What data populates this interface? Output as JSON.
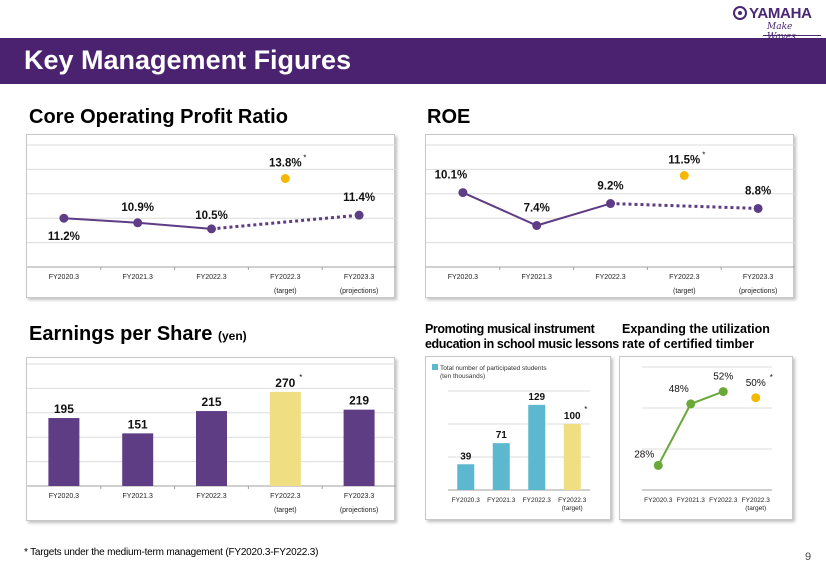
{
  "header": {
    "logo_text": "YAMAHA",
    "logo_tagline": "Make Waves",
    "title": "Key Management Figures"
  },
  "sections": {
    "cop_title": "Core Operating Profit Ratio",
    "roe_title": "ROE",
    "eps_title": "Earnings per Share",
    "eps_unit": "(yen)",
    "edu_title_line1": "Promoting musical instrument",
    "edu_title_line2": "education in school music lessons",
    "timber_title_line1": "Expanding the utilization",
    "timber_title_line2": "rate of certified timber"
  },
  "footnote": "* Targets under the medium-term management (FY2020.3-FY2022.3)",
  "page_number": "9",
  "colors": {
    "brand_purple": "#4a2270",
    "series_purple": "#5f3d85",
    "target_yellow_dot": "#f5b800",
    "target_yellow_bar": "#f0de82",
    "edu_blue": "#5bb8cf",
    "timber_green": "#6aa839"
  },
  "chart_data": [
    {
      "id": "core-operating-profit-ratio",
      "type": "line",
      "title": "Core Operating Profit Ratio",
      "categories": [
        "FY2020.3",
        "FY2021.3",
        "FY2022.3",
        "FY2022.3",
        "FY2023.3"
      ],
      "category_sublabels": [
        "",
        "",
        "",
        "(target)",
        "(projections)"
      ],
      "series": [
        {
          "name": "actual",
          "x_index": [
            0,
            1,
            2
          ],
          "values": [
            11.2,
            10.9,
            10.5
          ],
          "labels": [
            "11.2%",
            "10.9%",
            "10.5%"
          ],
          "style": "solid"
        },
        {
          "name": "projection",
          "x_index": [
            2,
            4
          ],
          "values": [
            10.5,
            11.4
          ],
          "labels": [
            "",
            "11.4%"
          ],
          "style": "dotted"
        },
        {
          "name": "target",
          "x_index": [
            3
          ],
          "values": [
            13.8
          ],
          "labels": [
            "13.8%"
          ],
          "style": "dot",
          "marker_note": "*"
        }
      ],
      "ylim": [
        8,
        16
      ],
      "grid": true,
      "xlabel": "",
      "ylabel": ""
    },
    {
      "id": "roe",
      "type": "line",
      "title": "ROE",
      "categories": [
        "FY2020.3",
        "FY2021.3",
        "FY2022.3",
        "FY2022.3",
        "FY2023.3"
      ],
      "category_sublabels": [
        "",
        "",
        "",
        "(target)",
        "(projections)"
      ],
      "series": [
        {
          "name": "actual",
          "x_index": [
            0,
            1,
            2
          ],
          "values": [
            10.1,
            7.4,
            9.2
          ],
          "labels": [
            "10.1%",
            "7.4%",
            "9.2%"
          ],
          "style": "solid"
        },
        {
          "name": "projection",
          "x_index": [
            2,
            4
          ],
          "values": [
            9.2,
            8.8
          ],
          "labels": [
            "",
            "8.8%"
          ],
          "style": "dotted"
        },
        {
          "name": "target",
          "x_index": [
            3
          ],
          "values": [
            11.5
          ],
          "labels": [
            "11.5%"
          ],
          "style": "dot",
          "marker_note": "*"
        }
      ],
      "ylim": [
        4,
        14
      ],
      "grid": true,
      "xlabel": "",
      "ylabel": ""
    },
    {
      "id": "earnings-per-share",
      "type": "bar",
      "title": "Earnings per Share (yen)",
      "categories": [
        "FY2020.3",
        "FY2021.3",
        "FY2022.3",
        "FY2022.3",
        "FY2023.3"
      ],
      "category_sublabels": [
        "",
        "",
        "",
        "(target)",
        "(projections)"
      ],
      "values": [
        195,
        151,
        215,
        270,
        219
      ],
      "labels": [
        "195",
        "151",
        "215",
        "270",
        "219"
      ],
      "highlight_index": 3,
      "marker_note": "*",
      "ylim": [
        0,
        350
      ],
      "grid": true,
      "xlabel": "",
      "ylabel": ""
    },
    {
      "id": "school-music-education",
      "type": "bar",
      "title": "Promoting musical instrument education in school music lessons",
      "legend": "Total number of participated students",
      "legend_sub": "(ten thousands)",
      "legend_position": "top-left",
      "categories": [
        "FY2020.3",
        "FY2021.3",
        "FY2022.3",
        "FY2022.3"
      ],
      "category_sublabels": [
        "",
        "",
        "",
        "(target)"
      ],
      "values": [
        39,
        71,
        129,
        100
      ],
      "labels": [
        "39",
        "71",
        "129",
        "100"
      ],
      "highlight_index": 3,
      "marker_note": "*",
      "ylim": [
        0,
        150
      ],
      "grid": true,
      "xlabel": "",
      "ylabel": ""
    },
    {
      "id": "certified-timber",
      "type": "line",
      "title": "Expanding the utilization rate of certified timber",
      "categories": [
        "FY2020.3",
        "FY2021.3",
        "FY2022.3",
        "FY2022.3"
      ],
      "category_sublabels": [
        "",
        "",
        "",
        "(target)"
      ],
      "series": [
        {
          "name": "actual",
          "x_index": [
            0,
            1,
            2
          ],
          "values": [
            28,
            48,
            52
          ],
          "labels": [
            "28%",
            "48%",
            "52%"
          ],
          "style": "solid"
        },
        {
          "name": "target",
          "x_index": [
            3
          ],
          "values": [
            50
          ],
          "labels": [
            "50%"
          ],
          "style": "dot",
          "marker_note": "*"
        }
      ],
      "ylim": [
        20,
        60
      ],
      "grid": true,
      "xlabel": "",
      "ylabel": ""
    }
  ]
}
